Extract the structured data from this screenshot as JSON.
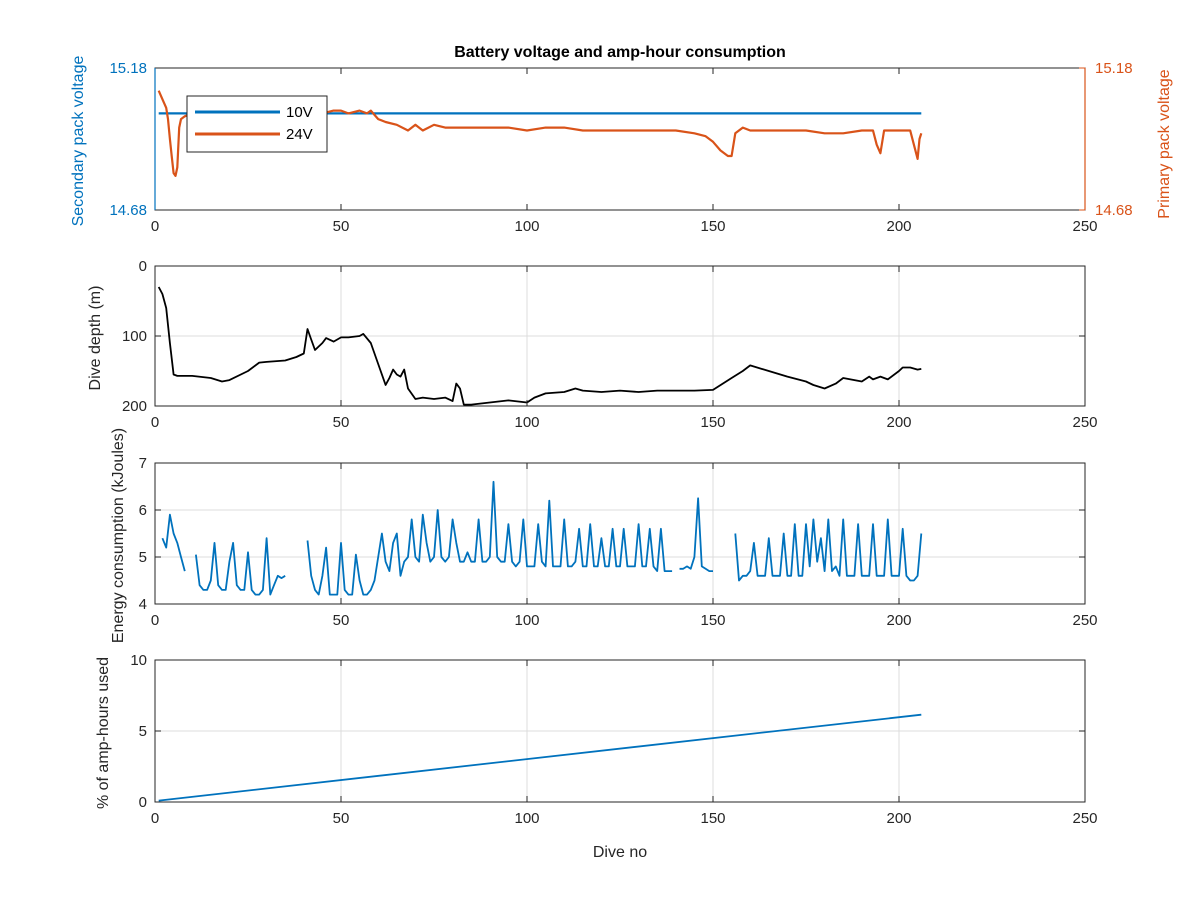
{
  "chart_data": [
    {
      "type": "line",
      "title": "Battery voltage and amp-hour consumption",
      "xlabel": "",
      "ylabel": "Secondary pack voltage",
      "ylabel_right": "Primary pack voltage",
      "xlim": [
        0,
        250
      ],
      "ylim": [
        14.68,
        15.18
      ],
      "ylim_right": [
        14.68,
        15.18
      ],
      "xticks": [
        0,
        50,
        100,
        150,
        200,
        250
      ],
      "yticks": [
        14.68,
        15.18
      ],
      "yticks_right": [
        14.68,
        15.18
      ],
      "grid": false,
      "legend": "top-left",
      "colors": {
        "left_axis": "#0072BD",
        "right_axis": "#D95319"
      },
      "series": [
        {
          "name": "10V",
          "axis": "left",
          "color": "#0072BD",
          "x": [
            1,
            206
          ],
          "y": [
            15.02,
            15.02
          ]
        },
        {
          "name": "24V",
          "axis": "right",
          "color": "#D95319",
          "x": [
            1,
            2,
            3,
            3.5,
            4,
            4.5,
            5,
            5.5,
            6,
            6.5,
            7,
            8,
            10,
            15,
            20,
            25,
            30,
            35,
            40,
            42,
            45,
            48,
            50,
            52,
            55,
            57,
            58,
            60,
            62,
            65,
            68,
            70,
            72,
            75,
            78,
            80,
            85,
            90,
            95,
            100,
            105,
            110,
            115,
            120,
            125,
            130,
            135,
            140,
            145,
            148,
            150,
            152,
            154,
            155,
            156,
            158,
            160,
            165,
            170,
            175,
            180,
            185,
            190,
            193,
            194,
            195,
            196,
            198,
            200,
            202,
            203,
            204,
            205,
            205.5,
            206
          ],
          "y": [
            15.1,
            15.07,
            15.04,
            15.0,
            14.93,
            14.87,
            14.81,
            14.8,
            14.83,
            14.97,
            15.0,
            15.01,
            15.02,
            15.02,
            15.02,
            15.02,
            15.02,
            15.02,
            15.02,
            15.02,
            15.02,
            15.03,
            15.03,
            15.02,
            15.03,
            15.02,
            15.03,
            15.0,
            14.99,
            14.98,
            14.96,
            14.98,
            14.96,
            14.98,
            14.97,
            14.97,
            14.97,
            14.97,
            14.97,
            14.96,
            14.97,
            14.97,
            14.96,
            14.96,
            14.96,
            14.96,
            14.96,
            14.96,
            14.95,
            14.94,
            14.92,
            14.89,
            14.87,
            14.87,
            14.95,
            14.97,
            14.96,
            14.96,
            14.96,
            14.96,
            14.95,
            14.95,
            14.96,
            14.96,
            14.91,
            14.88,
            14.96,
            14.96,
            14.96,
            14.96,
            14.96,
            14.91,
            14.86,
            14.93,
            14.95
          ]
        }
      ]
    },
    {
      "type": "line",
      "title": "",
      "xlabel": "",
      "ylabel": "Dive depth (m)",
      "xlim": [
        0,
        250
      ],
      "ylim": [
        0,
        200
      ],
      "y_reversed": true,
      "xticks": [
        0,
        50,
        100,
        150,
        200,
        250
      ],
      "yticks": [
        0,
        100,
        200
      ],
      "grid": true,
      "series": [
        {
          "color": "#000000",
          "x": [
            1,
            2,
            3,
            4,
            5,
            6,
            10,
            15,
            18,
            20,
            25,
            28,
            30,
            35,
            38,
            40,
            41,
            42,
            43,
            45,
            46,
            48,
            50,
            52,
            55,
            56,
            58,
            60,
            62,
            63,
            64,
            65,
            66,
            67,
            68,
            70,
            72,
            75,
            78,
            80,
            81,
            82,
            83,
            85,
            90,
            95,
            100,
            102,
            105,
            110,
            113,
            115,
            120,
            125,
            130,
            135,
            140,
            145,
            150,
            155,
            158,
            160,
            165,
            170,
            175,
            177,
            180,
            183,
            185,
            190,
            192,
            193,
            195,
            197,
            200,
            201,
            203,
            205,
            206
          ],
          "y": [
            30,
            40,
            60,
            110,
            155,
            157,
            157,
            160,
            165,
            163,
            150,
            138,
            137,
            135,
            130,
            125,
            90,
            105,
            120,
            110,
            103,
            108,
            102,
            102,
            100,
            97,
            110,
            140,
            170,
            160,
            148,
            155,
            158,
            148,
            175,
            190,
            188,
            190,
            188,
            193,
            168,
            175,
            198,
            198,
            195,
            192,
            195,
            188,
            182,
            180,
            175,
            178,
            180,
            178,
            180,
            178,
            178,
            178,
            177,
            160,
            150,
            142,
            150,
            158,
            165,
            170,
            175,
            168,
            160,
            165,
            158,
            162,
            158,
            162,
            150,
            145,
            145,
            148,
            147
          ]
        }
      ]
    },
    {
      "type": "line",
      "title": "",
      "xlabel": "",
      "ylabel": "Energy consumption (kJoules)",
      "xlim": [
        0,
        250
      ],
      "ylim": [
        4,
        7
      ],
      "xticks": [
        0,
        50,
        100,
        150,
        200,
        250
      ],
      "yticks": [
        4,
        5,
        6,
        7
      ],
      "grid": true,
      "series": [
        {
          "color": "#0072BD",
          "x": [
            2,
            3,
            4,
            5,
            6,
            7,
            8
          ],
          "y": [
            5.4,
            5.2,
            5.9,
            5.5,
            5.3,
            5.0,
            4.7
          ]
        },
        {
          "color": "#0072BD",
          "x": [
            11,
            12,
            13,
            14,
            15,
            16,
            17,
            18,
            19,
            20,
            21,
            22,
            23,
            24,
            25,
            26,
            27,
            28,
            29,
            30,
            31,
            32,
            33,
            34,
            35
          ],
          "y": [
            5.05,
            4.4,
            4.3,
            4.3,
            4.5,
            5.3,
            4.4,
            4.3,
            4.3,
            4.9,
            5.3,
            4.4,
            4.3,
            4.3,
            5.1,
            4.3,
            4.2,
            4.2,
            4.3,
            5.4,
            4.2,
            4.4,
            4.6,
            4.55,
            4.6
          ]
        },
        {
          "color": "#0072BD",
          "x": [
            41,
            42,
            43,
            44,
            45,
            46,
            47,
            48,
            49,
            50,
            51,
            52,
            53,
            54,
            55,
            56,
            57,
            58,
            59,
            60,
            61,
            62,
            63,
            64,
            65,
            66,
            67,
            68,
            69,
            70,
            71,
            72,
            73,
            74,
            75,
            76,
            77,
            78,
            79,
            80,
            81,
            82,
            83,
            84,
            85,
            86,
            87,
            88,
            89,
            90,
            91,
            92,
            93,
            94,
            95,
            96,
            97,
            98,
            99,
            100,
            101,
            102,
            103,
            104,
            105,
            106,
            107,
            108,
            109,
            110,
            111,
            112,
            113,
            114,
            115,
            116,
            117,
            118,
            119,
            120,
            121,
            122,
            123,
            124,
            125,
            126,
            127,
            128,
            129,
            130,
            131,
            132,
            133,
            134,
            135,
            136,
            137,
            138,
            139
          ],
          "y": [
            5.35,
            4.6,
            4.3,
            4.2,
            4.6,
            5.2,
            4.2,
            4.2,
            4.2,
            5.3,
            4.3,
            4.2,
            4.2,
            5.05,
            4.5,
            4.2,
            4.2,
            4.3,
            4.5,
            5.0,
            5.5,
            4.9,
            4.7,
            5.3,
            5.5,
            4.6,
            4.9,
            5.0,
            5.8,
            5.0,
            4.9,
            5.9,
            5.3,
            4.9,
            5.0,
            6.0,
            5.0,
            4.9,
            5.0,
            5.8,
            5.3,
            4.9,
            4.9,
            5.1,
            4.9,
            4.9,
            5.8,
            4.9,
            4.9,
            5.0,
            6.6,
            5.0,
            4.9,
            4.9,
            5.7,
            4.9,
            4.8,
            4.9,
            5.8,
            4.8,
            4.8,
            4.8,
            5.7,
            4.9,
            4.8,
            6.2,
            4.8,
            4.8,
            4.8,
            5.8,
            4.8,
            4.8,
            4.9,
            5.6,
            4.8,
            4.8,
            5.7,
            4.8,
            4.8,
            5.4,
            4.8,
            4.8,
            5.6,
            4.8,
            4.8,
            5.6,
            4.8,
            4.8,
            4.8,
            5.7,
            4.8,
            4.8,
            5.6,
            4.8,
            4.7,
            5.6,
            4.7,
            4.7,
            4.7
          ]
        },
        {
          "color": "#0072BD",
          "x": [
            141,
            142,
            143,
            144,
            145,
            146,
            147,
            148,
            149,
            150
          ],
          "y": [
            4.75,
            4.75,
            4.8,
            4.75,
            5.0,
            6.25,
            4.8,
            4.75,
            4.7,
            4.7
          ]
        },
        {
          "color": "#0072BD",
          "x": [
            156,
            157,
            158,
            159,
            160,
            161,
            162,
            163,
            164,
            165,
            166,
            167,
            168,
            169,
            170,
            171,
            172,
            173,
            174,
            175,
            176,
            177,
            178,
            179,
            180,
            181,
            182,
            183,
            184,
            185,
            186,
            187,
            188,
            189,
            190,
            191,
            192,
            193,
            194,
            195,
            196,
            197,
            198,
            199,
            200,
            201,
            202,
            203,
            204,
            205,
            206
          ],
          "y": [
            5.5,
            4.5,
            4.6,
            4.6,
            4.7,
            5.3,
            4.6,
            4.6,
            4.6,
            5.4,
            4.6,
            4.6,
            4.6,
            5.5,
            4.6,
            4.6,
            5.7,
            4.6,
            4.6,
            5.7,
            4.8,
            5.8,
            4.9,
            5.4,
            4.7,
            5.8,
            4.7,
            4.8,
            4.6,
            5.8,
            4.6,
            4.6,
            4.6,
            5.7,
            4.6,
            4.6,
            4.6,
            5.7,
            4.6,
            4.6,
            4.6,
            5.8,
            4.6,
            4.6,
            4.6,
            5.6,
            4.6,
            4.5,
            4.5,
            4.6,
            5.5
          ]
        }
      ]
    },
    {
      "type": "line",
      "title": "",
      "xlabel": "Dive no",
      "ylabel": "% of amp-hours used",
      "xlim": [
        0,
        250
      ],
      "ylim": [
        0,
        10
      ],
      "xticks": [
        0,
        50,
        100,
        150,
        200,
        250
      ],
      "yticks": [
        0,
        5,
        10
      ],
      "grid": true,
      "series": [
        {
          "color": "#0072BD",
          "x": [
            1,
            206
          ],
          "y": [
            0.1,
            6.15
          ]
        }
      ]
    }
  ]
}
